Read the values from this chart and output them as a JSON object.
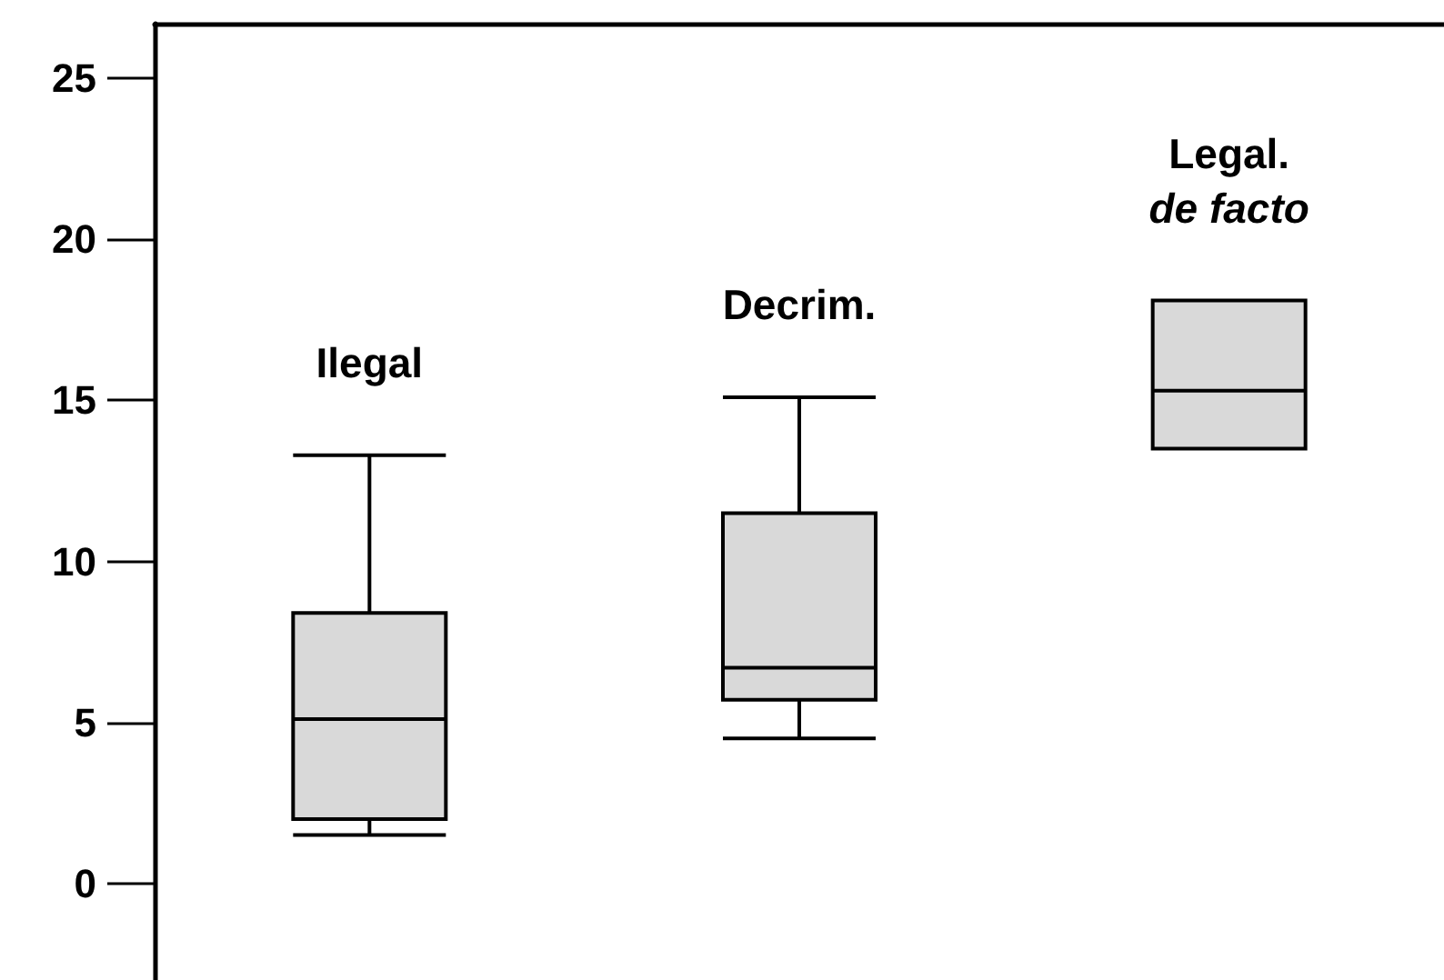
{
  "chart_data": {
    "type": "box",
    "categories": [
      "Ilegal",
      "Decrim.",
      "Legal.\nde facto"
    ],
    "boxes": [
      {
        "low": 1.5,
        "q1": 2.0,
        "median": 5.1,
        "q3": 8.4,
        "high": 13.3
      },
      {
        "low": 4.5,
        "q1": 5.7,
        "median": 6.7,
        "q3": 11.5,
        "high": 15.1
      },
      {
        "low": 13.5,
        "q1": 13.5,
        "median": 15.3,
        "q3": 18.1,
        "high": 18.1
      }
    ],
    "color": "#d9d9d9",
    "ylim": [
      -3,
      26.7
    ],
    "yticks": [
      0,
      5,
      10,
      15,
      20,
      25
    ],
    "tick_labels": "y"
  }
}
